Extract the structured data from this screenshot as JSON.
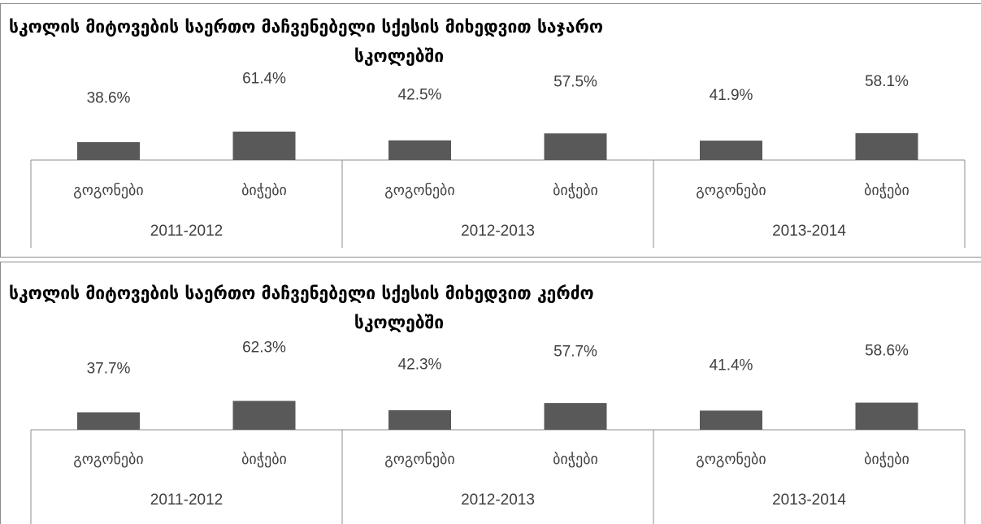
{
  "chart_data": [
    {
      "type": "bar",
      "title": "სკოლის მიტოვების საერთო მაჩვენებელი სქესის მიხედვით საჯარო სკოლებში",
      "title_lines": [
        "სკოლის მიტოვების საერთო მაჩვენებელი სქესის მიხედვით საჯარო",
        "სკოლებში"
      ],
      "groups": [
        "2011-2012",
        "2012-2013",
        "2013-2014"
      ],
      "categories": [
        "გოგონები",
        "ბიჭები"
      ],
      "values": [
        [
          38.6,
          61.4
        ],
        [
          42.5,
          57.5
        ],
        [
          41.9,
          58.1
        ]
      ],
      "labels": [
        [
          "38.6%",
          "61.4%"
        ],
        [
          "42.5%",
          "57.5%"
        ],
        [
          "41.9%",
          "58.1%"
        ]
      ],
      "bar_color": "#595959",
      "ylabel": "",
      "xlabel": ""
    },
    {
      "type": "bar",
      "title": "სკოლის მიტოვების საერთო მაჩვენებელი სქესის მიხედვით კერძო სკოლებში",
      "title_lines": [
        "სკოლის მიტოვების საერთო მაჩვენებელი სქესის მიხედვით კერძო",
        "სკოლებში"
      ],
      "groups": [
        "2011-2012",
        "2012-2013",
        "2013-2014"
      ],
      "categories": [
        "გოგონები",
        "ბიჭები"
      ],
      "values": [
        [
          37.7,
          62.3
        ],
        [
          42.3,
          57.7
        ],
        [
          41.4,
          58.6
        ]
      ],
      "labels": [
        [
          "37.7%",
          "62.3%"
        ],
        [
          "42.3%",
          "57.7%"
        ],
        [
          "41.4%",
          "58.6%"
        ]
      ],
      "bar_color": "#595959",
      "ylabel": "",
      "xlabel": ""
    }
  ]
}
